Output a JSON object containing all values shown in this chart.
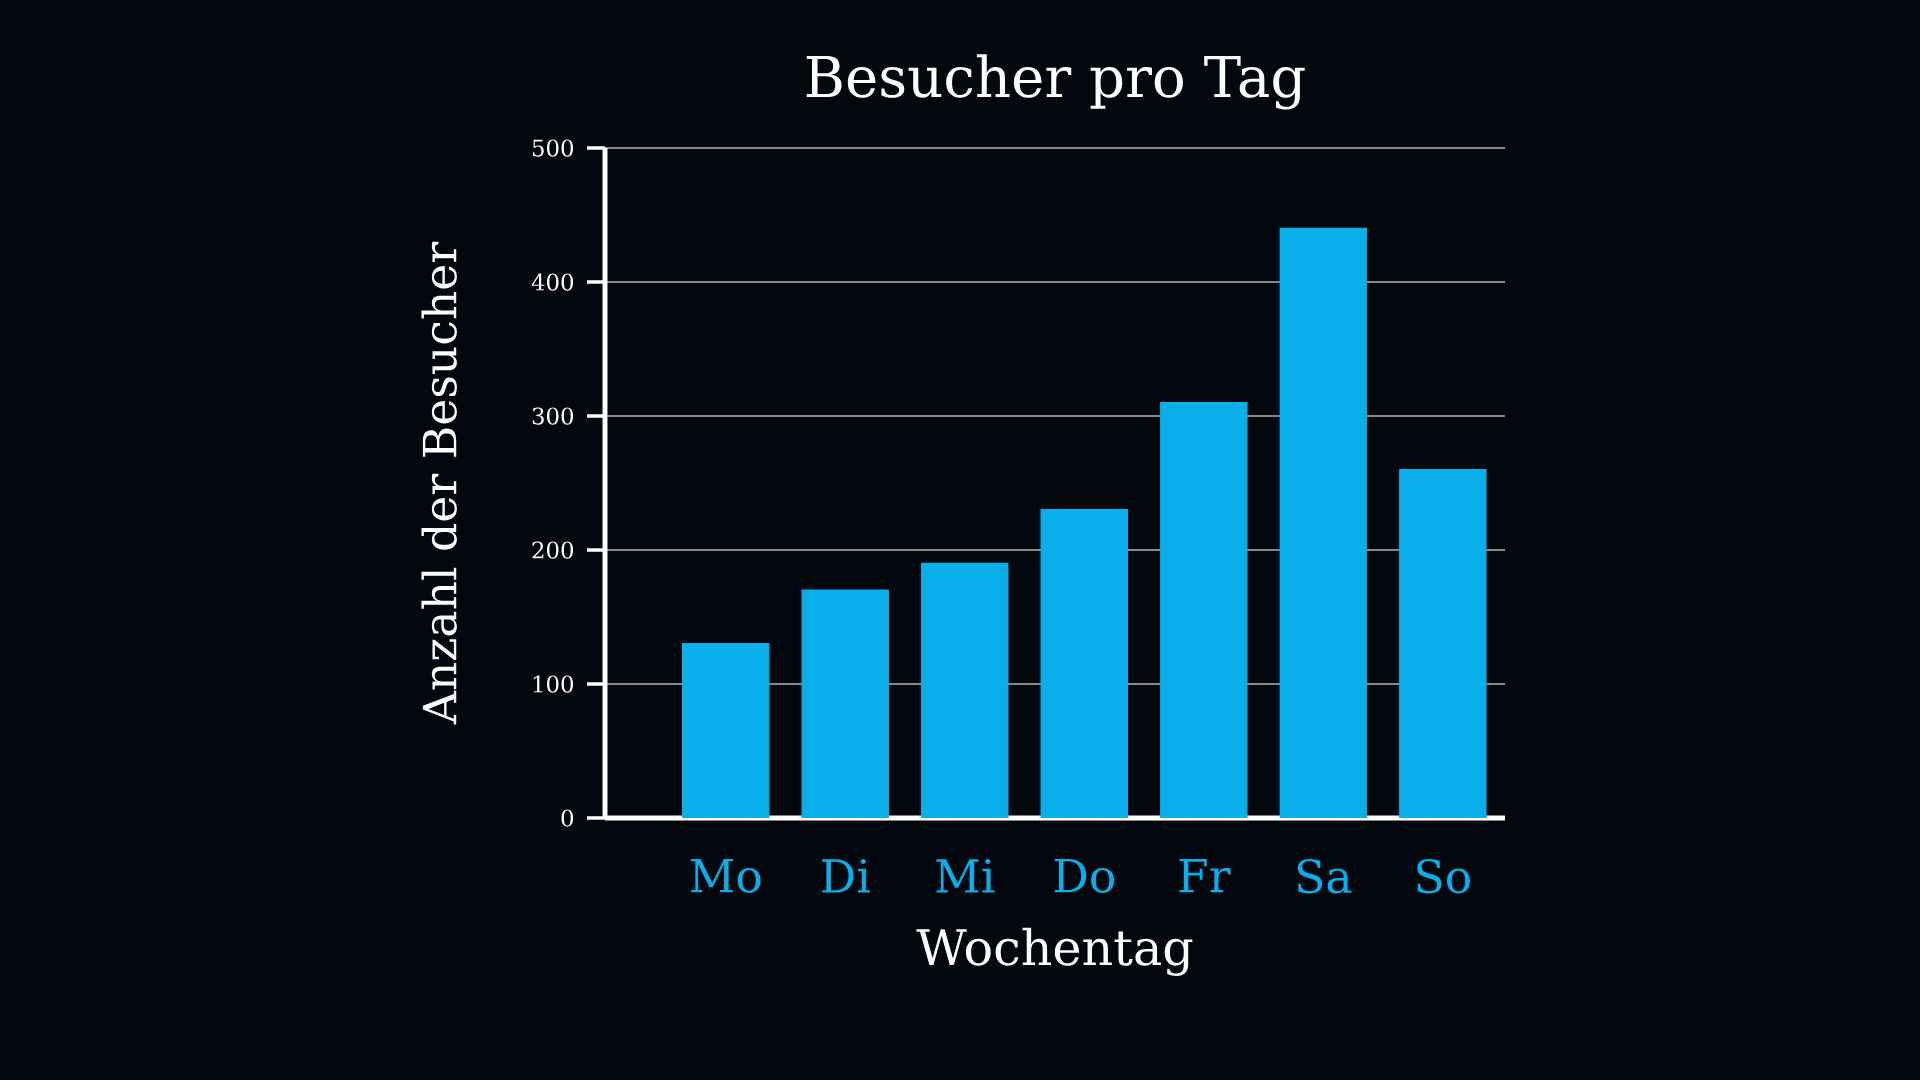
{
  "chart_data": {
    "type": "bar",
    "title": "Besucher pro Tag",
    "xlabel": "Wochentag",
    "ylabel": "Anzahl der Besucher",
    "categories": [
      "Mo",
      "Di",
      "Mi",
      "Do",
      "Fr",
      "Sa",
      "So"
    ],
    "values": [
      130,
      170,
      190,
      230,
      310,
      440,
      260
    ],
    "color": "#0aaee8",
    "ylim": [
      0,
      500
    ],
    "yticks": [
      0,
      100,
      200,
      300,
      400,
      500
    ],
    "grid": "y"
  }
}
